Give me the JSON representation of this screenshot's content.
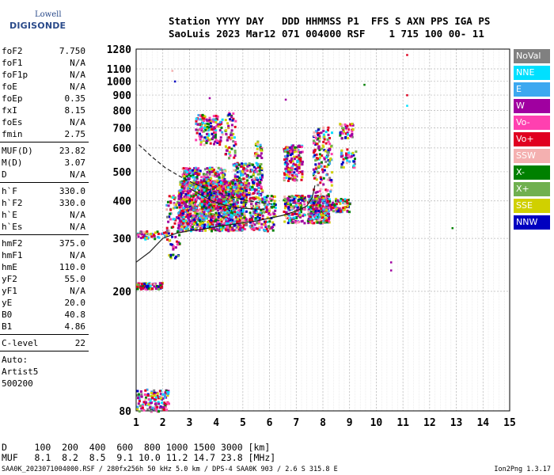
{
  "logo": {
    "line1": "Lowell",
    "line2": "DIGISONDE"
  },
  "header": {
    "line1": "Station YYYY DAY   DDD HHMMSS P1  FFS S AXN PPS IGA PS",
    "line2": "SaoLuis 2023 Mar12 071 004000 RSF    1 715 100 00- 11"
  },
  "params": {
    "groups": [
      [
        {
          "name": "foF2",
          "value": "7.750"
        },
        {
          "name": "foF1",
          "value": "N/A"
        },
        {
          "name": "foF1p",
          "value": "N/A"
        },
        {
          "name": "foE",
          "value": "N/A"
        },
        {
          "name": "foEp",
          "value": "0.35"
        },
        {
          "name": "fxI",
          "value": "8.15"
        },
        {
          "name": "foEs",
          "value": "N/A"
        },
        {
          "name": "fmin",
          "value": "2.75"
        }
      ],
      [
        {
          "name": "MUF(D)",
          "value": "23.82"
        },
        {
          "name": "M(D)",
          "value": "3.07"
        },
        {
          "name": "D",
          "value": "N/A"
        }
      ],
      [
        {
          "name": "h`F",
          "value": "330.0"
        },
        {
          "name": "h`F2",
          "value": "330.0"
        },
        {
          "name": "h`E",
          "value": "N/A"
        },
        {
          "name": "h`Es",
          "value": "N/A"
        }
      ],
      [
        {
          "name": "hmF2",
          "value": "375.0"
        },
        {
          "name": "hmF1",
          "value": "N/A"
        },
        {
          "name": "hmE",
          "value": "110.0"
        },
        {
          "name": "yF2",
          "value": "55.0"
        },
        {
          "name": "yF1",
          "value": "N/A"
        },
        {
          "name": "yE",
          "value": "20.0"
        },
        {
          "name": "B0",
          "value": "40.8"
        },
        {
          "name": "B1",
          "value": "4.86"
        }
      ],
      [
        {
          "name": "C-level",
          "value": "22"
        }
      ]
    ],
    "auto_label": "Auto:",
    "auto_program": "Artist5",
    "auto_version": "500200"
  },
  "legend": [
    {
      "label": "NoVal",
      "color": "#808080"
    },
    {
      "label": "NNE",
      "color": "#00e0ff"
    },
    {
      "label": "E",
      "color": "#3ca8f0"
    },
    {
      "label": "W",
      "color": "#a000a0"
    },
    {
      "label": "Vo-",
      "color": "#ff40b0"
    },
    {
      "label": "Vo+",
      "color": "#e00020"
    },
    {
      "label": "SSW",
      "color": "#f4b0b0"
    },
    {
      "label": "X-",
      "color": "#008000"
    },
    {
      "label": "X+",
      "color": "#70b050"
    },
    {
      "label": "SSE",
      "color": "#d0d000"
    },
    {
      "label": "NNW",
      "color": "#0000c0"
    }
  ],
  "footer": {
    "d_row": "D     100  200  400  600  800 1000 1500 3000 [km]",
    "muf_row": "MUF   8.1  8.2  8.5  9.1 10.0 11.2 14.7 23.8 [MHz]",
    "info": "SAA0K_2023071004000.RSF / 280fx256h 50 kHz 5.0 km / DPS-4 SAA0K 903 / 2.6 S 315.8 E",
    "version": "Ion2Png 1.3.17"
  },
  "chart_data": {
    "type": "scatter",
    "title": "",
    "xlabel": "",
    "ylabel": "",
    "xlim": [
      1,
      15
    ],
    "ylim": [
      80,
      1280
    ],
    "y_scale": "log",
    "x_ticks": [
      1,
      2,
      3,
      4,
      5,
      6,
      7,
      8,
      9,
      10,
      11,
      12,
      13,
      14,
      15
    ],
    "y_ticks": [
      80,
      200,
      300,
      400,
      500,
      600,
      700,
      800,
      900,
      1000,
      1100,
      1280
    ],
    "grid": true,
    "legend_position": "right",
    "clusters": [
      {
        "x": [
          2.55,
          5.1
        ],
        "y": [
          320,
          470
        ],
        "count": 1400
      },
      {
        "x": [
          3.4,
          4.6
        ],
        "y": [
          380,
          470
        ],
        "count": 300
      },
      {
        "x": [
          2.7,
          4.3
        ],
        "y": [
          470,
          520
        ],
        "count": 160
      },
      {
        "x": [
          4.6,
          5.7
        ],
        "y": [
          420,
          540
        ],
        "count": 220
      },
      {
        "x": [
          5.2,
          6.2
        ],
        "y": [
          320,
          420
        ],
        "count": 180
      },
      {
        "x": [
          6.5,
          7.2
        ],
        "y": [
          470,
          620
        ],
        "count": 180
      },
      {
        "x": [
          6.5,
          7.3
        ],
        "y": [
          340,
          420
        ],
        "count": 160
      },
      {
        "x": [
          7.4,
          8.2
        ],
        "y": [
          340,
          420
        ],
        "count": 280
      },
      {
        "x": [
          7.6,
          8.3
        ],
        "y": [
          420,
          710
        ],
        "count": 150
      },
      {
        "x": [
          8.0,
          9.0
        ],
        "y": [
          370,
          410
        ],
        "count": 100
      },
      {
        "x": [
          8.6,
          9.1
        ],
        "y": [
          650,
          730
        ],
        "count": 50
      },
      {
        "x": [
          8.6,
          9.2
        ],
        "y": [
          520,
          600
        ],
        "count": 40
      },
      {
        "x": [
          3.2,
          4.2
        ],
        "y": [
          620,
          780
        ],
        "count": 160
      },
      {
        "x": [
          4.3,
          4.7
        ],
        "y": [
          560,
          800
        ],
        "count": 60
      },
      {
        "x": [
          2.1,
          2.6
        ],
        "y": [
          260,
          420
        ],
        "count": 80
      },
      {
        "x": [
          1.0,
          2.2
        ],
        "y": [
          300,
          320
        ],
        "count": 50
      },
      {
        "x": [
          1.0,
          1.95
        ],
        "y": [
          205,
          215
        ],
        "count": 90
      },
      {
        "x": [
          1.0,
          2.2
        ],
        "y": [
          80,
          95
        ],
        "count": 130
      },
      {
        "x": [
          5.4,
          5.7
        ],
        "y": [
          560,
          640
        ],
        "count": 25
      }
    ],
    "isolated_points": [
      {
        "x": 2.45,
        "y": 1000,
        "color": "#0000c0"
      },
      {
        "x": 3.75,
        "y": 880,
        "color": "#a000a0"
      },
      {
        "x": 6.6,
        "y": 870,
        "color": "#a000a0"
      },
      {
        "x": 9.55,
        "y": 975,
        "color": "#008000"
      },
      {
        "x": 11.15,
        "y": 1225,
        "color": "#e00020"
      },
      {
        "x": 11.15,
        "y": 900,
        "color": "#e00020"
      },
      {
        "x": 11.15,
        "y": 830,
        "color": "#00e0ff"
      },
      {
        "x": 12.85,
        "y": 325,
        "color": "#008000"
      },
      {
        "x": 10.55,
        "y": 250,
        "color": "#a000a0"
      },
      {
        "x": 10.55,
        "y": 235,
        "color": "#a000a0"
      },
      {
        "x": 2.35,
        "y": 1085,
        "color": "#f4b0b0"
      }
    ],
    "trace_series": [
      {
        "style": "solid",
        "x": [
          1.0,
          1.5,
          2.0,
          2.5,
          3.0,
          3.5,
          4.0,
          4.5,
          5.0,
          5.5,
          6.0,
          6.5,
          7.0,
          7.4,
          7.6,
          7.7
        ],
        "y": [
          250,
          270,
          300,
          312,
          318,
          322,
          328,
          333,
          338,
          343,
          350,
          358,
          370,
          385,
          410,
          450
        ]
      },
      {
        "style": "dashed",
        "x": [
          1.1,
          1.6,
          2.1,
          2.6,
          3.1,
          3.6,
          4.1,
          4.6,
          5.1,
          5.6,
          6.1
        ],
        "y": [
          615,
          560,
          515,
          485,
          460,
          440,
          425,
          412,
          402,
          395,
          390
        ]
      },
      {
        "style": "solid",
        "x": [
          3.0,
          3.4,
          3.8,
          4.2,
          4.6,
          5.0,
          5.4,
          5.8
        ],
        "y": [
          440,
          420,
          402,
          390,
          382,
          378,
          376,
          375
        ]
      }
    ]
  }
}
